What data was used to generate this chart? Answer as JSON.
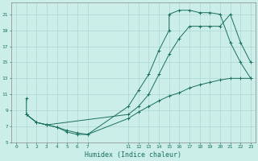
{
  "xlabel": "Humidex (Indice chaleur)",
  "bg_color": "#cceee8",
  "grid_color": "#aad8d0",
  "line_color": "#1a7060",
  "curve1_x": [
    1,
    1,
    2,
    3,
    4,
    5,
    6,
    7,
    11,
    12,
    13,
    14,
    15,
    15,
    16,
    17,
    18,
    19,
    20,
    21,
    22,
    23
  ],
  "curve1_y": [
    10.5,
    8.5,
    7.5,
    7.2,
    6.9,
    6.5,
    6.2,
    6.0,
    9.5,
    11.5,
    13.5,
    16.5,
    19.0,
    21.0,
    21.5,
    21.5,
    21.2,
    21.2,
    21.0,
    17.5,
    15.0,
    13.0
  ],
  "curve2_x": [
    1,
    2,
    3,
    11,
    12,
    13,
    14,
    15,
    16,
    17,
    18,
    19,
    20,
    21,
    22,
    23
  ],
  "curve2_y": [
    8.5,
    7.5,
    7.2,
    8.5,
    9.5,
    11.0,
    13.5,
    16.0,
    18.0,
    19.5,
    19.5,
    19.5,
    19.5,
    21.0,
    17.5,
    15.0
  ],
  "curve3_x": [
    1,
    2,
    3,
    4,
    5,
    6,
    7,
    11,
    12,
    13,
    14,
    15,
    16,
    17,
    18,
    19,
    20,
    21,
    22,
    23
  ],
  "curve3_y": [
    8.5,
    7.5,
    7.2,
    6.9,
    6.3,
    6.0,
    6.0,
    8.0,
    8.8,
    9.5,
    10.2,
    10.8,
    11.2,
    11.8,
    12.2,
    12.5,
    12.8,
    13.0,
    13.0,
    13.0
  ],
  "xticks": [
    0,
    1,
    2,
    3,
    4,
    5,
    6,
    7,
    11,
    12,
    13,
    14,
    15,
    16,
    17,
    18,
    19,
    20,
    21,
    22,
    23
  ],
  "yticks": [
    5,
    7,
    9,
    11,
    13,
    15,
    17,
    19,
    21
  ],
  "xlim": [
    -0.5,
    23.5
  ],
  "ylim": [
    5,
    22.5
  ]
}
